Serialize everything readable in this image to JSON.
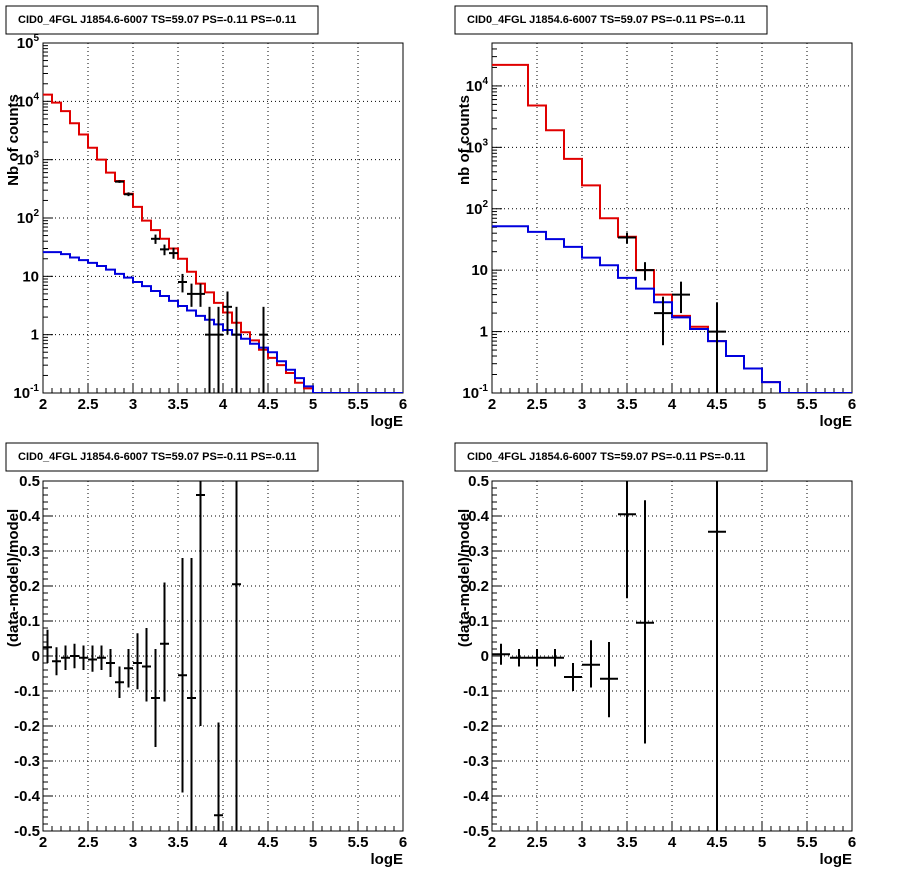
{
  "chart_data": [
    {
      "type": "line",
      "title": "CID0_4FGL J1854.6-6007 TS=59.07 PS=-0.11 PS=-0.11",
      "xlabel": "logE",
      "ylabel": "Nb of counts",
      "log_y": true,
      "xlim": [
        2,
        6
      ],
      "ylim": [
        0.1,
        100000
      ],
      "grid": true,
      "xticks": [
        "2",
        "2.5",
        "3",
        "3.5",
        "4",
        "4.5",
        "5",
        "5.5",
        "6"
      ],
      "yticks": [
        {
          "value": 0.1,
          "base": "10",
          "exp": "-1"
        },
        {
          "value": 1,
          "label": "1"
        },
        {
          "value": 10,
          "label": "10"
        },
        {
          "value": 100,
          "base": "10",
          "exp": "2"
        },
        {
          "value": 1000,
          "base": "10",
          "exp": "3"
        },
        {
          "value": 10000,
          "base": "10",
          "exp": "4"
        },
        {
          "value": 100000,
          "base": "10",
          "exp": "5"
        }
      ],
      "bin_edges": [
        2,
        2.1,
        2.2,
        2.3,
        2.4,
        2.5,
        2.6,
        2.7,
        2.8,
        2.9,
        3,
        3.1,
        3.2,
        3.3,
        3.4,
        3.5,
        3.6,
        3.7,
        3.8,
        3.9,
        4,
        4.1,
        4.2,
        4.3,
        4.4,
        4.5,
        4.6,
        4.7,
        4.8,
        4.9,
        5,
        5.1,
        5.2,
        5.3,
        5.4,
        5.5,
        5.6,
        5.7,
        5.8,
        5.9,
        6
      ],
      "series": [
        {
          "color": "#e00000",
          "values": [
            13000,
            9500,
            6800,
            4200,
            2700,
            1600,
            1000,
            600,
            430,
            260,
            155,
            90,
            62,
            44,
            30,
            20,
            12,
            7.5,
            5.3,
            3.5,
            2.4,
            1.6,
            1.1,
            0.8,
            0.55,
            0.4,
            0.3,
            0.22,
            0.15,
            0.12,
            0.1,
            0.1,
            0.1,
            0.1,
            0.1,
            0.1,
            0.1,
            0.1,
            0.1,
            0.1
          ]
        },
        {
          "color": "#0000dd",
          "values": [
            26,
            26,
            24,
            21,
            19,
            17,
            15,
            13,
            11,
            9.5,
            8,
            6.8,
            5.6,
            4.6,
            3.8,
            3.1,
            2.6,
            2.1,
            1.8,
            1.5,
            1.2,
            1.0,
            0.85,
            0.7,
            0.6,
            0.5,
            0.35,
            0.25,
            0.18,
            0.13,
            0.1,
            0.1,
            0.1,
            0.1,
            0.1,
            0.1,
            0.1,
            0.1,
            0.1,
            0.1
          ]
        }
      ],
      "data_points": {
        "color": "#000000",
        "points": [
          {
            "x": 2.85,
            "y": 420,
            "xerr": 0.05,
            "ylo": 400,
            "yhi": 445
          },
          {
            "x": 2.95,
            "y": 255,
            "xerr": 0.05,
            "ylo": 237,
            "yhi": 275
          },
          {
            "x": 3.25,
            "y": 44,
            "xerr": 0.05,
            "ylo": 36,
            "yhi": 52
          },
          {
            "x": 3.35,
            "y": 29,
            "xerr": 0.05,
            "ylo": 23,
            "yhi": 35
          },
          {
            "x": 3.45,
            "y": 25,
            "xerr": 0.05,
            "ylo": 20,
            "yhi": 31
          },
          {
            "x": 3.55,
            "y": 8,
            "xerr": 0.05,
            "ylo": 5.3,
            "yhi": 11
          },
          {
            "x": 3.65,
            "y": 5,
            "xerr": 0.05,
            "ylo": 3,
            "yhi": 7.5
          },
          {
            "x": 3.75,
            "y": 5,
            "xerr": 0.05,
            "ylo": 3,
            "yhi": 7.5
          },
          {
            "x": 3.85,
            "y": 1,
            "xerr": 0.05,
            "ylo": 0.1,
            "yhi": 3
          },
          {
            "x": 3.95,
            "y": 1,
            "xerr": 0.05,
            "ylo": 0.1,
            "yhi": 3
          },
          {
            "x": 4.05,
            "y": 3,
            "xerr": 0.05,
            "ylo": 1,
            "yhi": 5.5
          },
          {
            "x": 4.15,
            "y": 1,
            "xerr": 0.05,
            "ylo": 0.1,
            "yhi": 3
          },
          {
            "x": 4.45,
            "y": 1,
            "xerr": 0.05,
            "ylo": 0.1,
            "yhi": 3
          }
        ]
      }
    },
    {
      "type": "line",
      "title": "CID0_4FGL J1854.6-6007 TS=59.07 PS=-0.11 PS=-0.11",
      "xlabel": "logE",
      "ylabel": "nb of counts",
      "log_y": true,
      "xlim": [
        2,
        6
      ],
      "ylim": [
        0.1,
        50000
      ],
      "grid": true,
      "xticks": [
        "2",
        "2.5",
        "3",
        "3.5",
        "4",
        "4.5",
        "5",
        "5.5",
        "6"
      ],
      "yticks": [
        {
          "value": 0.1,
          "base": "10",
          "exp": "-1"
        },
        {
          "value": 1,
          "label": "1"
        },
        {
          "value": 10,
          "label": "10"
        },
        {
          "value": 100,
          "base": "10",
          "exp": "2"
        },
        {
          "value": 1000,
          "base": "10",
          "exp": "3"
        },
        {
          "value": 10000,
          "base": "10",
          "exp": "4"
        }
      ],
      "bin_edges": [
        2,
        2.2,
        2.4,
        2.6,
        2.8,
        3,
        3.2,
        3.4,
        3.6,
        3.8,
        4,
        4.2,
        4.4,
        4.6,
        4.8,
        5,
        5.2,
        5.4,
        5.6,
        5.8,
        6
      ],
      "series": [
        {
          "color": "#e00000",
          "values": [
            22000,
            22000,
            4800,
            1900,
            650,
            240,
            70,
            35,
            10,
            4,
            1.8,
            1.2,
            0.7,
            0.4,
            0.25,
            0.15,
            0.1,
            0.1,
            0.1,
            0.1
          ]
        },
        {
          "color": "#0000dd",
          "values": [
            52,
            52,
            42,
            32,
            24,
            16,
            12,
            7.5,
            5,
            3,
            1.7,
            1.1,
            0.7,
            0.4,
            0.25,
            0.15,
            0.1,
            0.1,
            0.1,
            0.1
          ]
        }
      ],
      "data_points": {
        "color": "#000000",
        "points": [
          {
            "x": 3.5,
            "y": 34,
            "xerr": 0.1,
            "ylo": 27,
            "yhi": 41
          },
          {
            "x": 3.7,
            "y": 10,
            "xerr": 0.1,
            "ylo": 6.8,
            "yhi": 13.5
          },
          {
            "x": 3.9,
            "y": 2,
            "xerr": 0.1,
            "ylo": 0.6,
            "yhi": 3.7
          },
          {
            "x": 4.1,
            "y": 4,
            "xerr": 0.1,
            "ylo": 2,
            "yhi": 6.5
          },
          {
            "x": 4.5,
            "y": 1,
            "xerr": 0.1,
            "ylo": 0.1,
            "yhi": 3
          }
        ]
      }
    },
    {
      "type": "scatter",
      "title": "CID0_4FGL J1854.6-6007 TS=59.07 PS=-0.11 PS=-0.11",
      "xlabel": "logE",
      "ylabel": "(data-model)/model",
      "xlim": [
        2,
        6
      ],
      "ylim": [
        -0.5,
        0.5
      ],
      "grid": true,
      "xticks": [
        "2",
        "2.5",
        "3",
        "3.5",
        "4",
        "4.5",
        "5",
        "5.5",
        "6"
      ],
      "yticks": [
        "-0.5",
        "-0.4",
        "-0.3",
        "-0.2",
        "-0.1",
        "0",
        "0.1",
        "0.2",
        "0.3",
        "0.4",
        "0.5"
      ],
      "data_points": {
        "color": "#000000",
        "points": [
          {
            "x": 2.05,
            "y": 0.025,
            "xerr": 0.05,
            "ylo": -0.02,
            "yhi": 0.075
          },
          {
            "x": 2.15,
            "y": -0.015,
            "xerr": 0.05,
            "ylo": -0.055,
            "yhi": 0.025
          },
          {
            "x": 2.25,
            "y": -0.005,
            "xerr": 0.05,
            "ylo": -0.04,
            "yhi": 0.03
          },
          {
            "x": 2.35,
            "y": 0.0,
            "xerr": 0.05,
            "ylo": -0.035,
            "yhi": 0.035
          },
          {
            "x": 2.45,
            "y": -0.005,
            "xerr": 0.05,
            "ylo": -0.04,
            "yhi": 0.03
          },
          {
            "x": 2.55,
            "y": -0.01,
            "xerr": 0.05,
            "ylo": -0.045,
            "yhi": 0.03
          },
          {
            "x": 2.65,
            "y": -0.005,
            "xerr": 0.05,
            "ylo": -0.04,
            "yhi": 0.03
          },
          {
            "x": 2.75,
            "y": -0.02,
            "xerr": 0.05,
            "ylo": -0.06,
            "yhi": 0.02
          },
          {
            "x": 2.85,
            "y": -0.075,
            "xerr": 0.05,
            "ylo": -0.12,
            "yhi": -0.03
          },
          {
            "x": 2.95,
            "y": -0.035,
            "xerr": 0.05,
            "ylo": -0.09,
            "yhi": 0.02
          },
          {
            "x": 3.05,
            "y": -0.02,
            "xerr": 0.05,
            "ylo": -0.095,
            "yhi": 0.065
          },
          {
            "x": 3.15,
            "y": -0.03,
            "xerr": 0.05,
            "ylo": -0.13,
            "yhi": 0.08
          },
          {
            "x": 3.25,
            "y": -0.12,
            "xerr": 0.05,
            "ylo": -0.26,
            "yhi": 0.02
          },
          {
            "x": 3.35,
            "y": 0.035,
            "xerr": 0.05,
            "ylo": -0.13,
            "yhi": 0.21
          },
          {
            "x": 3.55,
            "y": -0.055,
            "xerr": 0.05,
            "ylo": -0.39,
            "yhi": 0.28
          },
          {
            "x": 3.65,
            "y": -0.12,
            "xerr": 0.05,
            "ylo": -0.5,
            "yhi": 0.28
          },
          {
            "x": 3.75,
            "y": 0.46,
            "xerr": 0.05,
            "ylo": -0.2,
            "yhi": 0.5
          },
          {
            "x": 3.95,
            "y": -0.455,
            "xerr": 0.05,
            "ylo": -0.5,
            "yhi": -0.19
          },
          {
            "x": 4.15,
            "y": 0.205,
            "xerr": 0.05,
            "ylo": -0.5,
            "yhi": 0.5
          }
        ]
      }
    },
    {
      "type": "scatter",
      "title": "CID0_4FGL J1854.6-6007 TS=59.07 PS=-0.11 PS=-0.11",
      "xlabel": "logE",
      "ylabel": "(data-model)/model",
      "xlim": [
        2,
        6
      ],
      "ylim": [
        -0.5,
        0.5
      ],
      "grid": true,
      "xticks": [
        "2",
        "2.5",
        "3",
        "3.5",
        "4",
        "4.5",
        "5",
        "5.5",
        "6"
      ],
      "yticks": [
        "-0.5",
        "-0.4",
        "-0.3",
        "-0.2",
        "-0.1",
        "0",
        "0.1",
        "0.2",
        "0.3",
        "0.4",
        "0.5"
      ],
      "data_points": {
        "color": "#000000",
        "points": [
          {
            "x": 2.1,
            "y": 0.005,
            "xerr": 0.1,
            "ylo": -0.025,
            "yhi": 0.035
          },
          {
            "x": 2.3,
            "y": -0.005,
            "xerr": 0.1,
            "ylo": -0.03,
            "yhi": 0.02
          },
          {
            "x": 2.5,
            "y": -0.005,
            "xerr": 0.1,
            "ylo": -0.03,
            "yhi": 0.02
          },
          {
            "x": 2.7,
            "y": -0.005,
            "xerr": 0.1,
            "ylo": -0.03,
            "yhi": 0.02
          },
          {
            "x": 2.9,
            "y": -0.06,
            "xerr": 0.1,
            "ylo": -0.1,
            "yhi": -0.02
          },
          {
            "x": 3.1,
            "y": -0.025,
            "xerr": 0.1,
            "ylo": -0.09,
            "yhi": 0.045
          },
          {
            "x": 3.3,
            "y": -0.065,
            "xerr": 0.1,
            "ylo": -0.175,
            "yhi": 0.04
          },
          {
            "x": 3.5,
            "y": 0.405,
            "xerr": 0.1,
            "ylo": 0.165,
            "yhi": 0.5
          },
          {
            "x": 3.7,
            "y": 0.095,
            "xerr": 0.1,
            "ylo": -0.25,
            "yhi": 0.445
          },
          {
            "x": 4.5,
            "y": 0.355,
            "xerr": 0.1,
            "ylo": -0.5,
            "yhi": 0.5
          }
        ]
      }
    }
  ]
}
